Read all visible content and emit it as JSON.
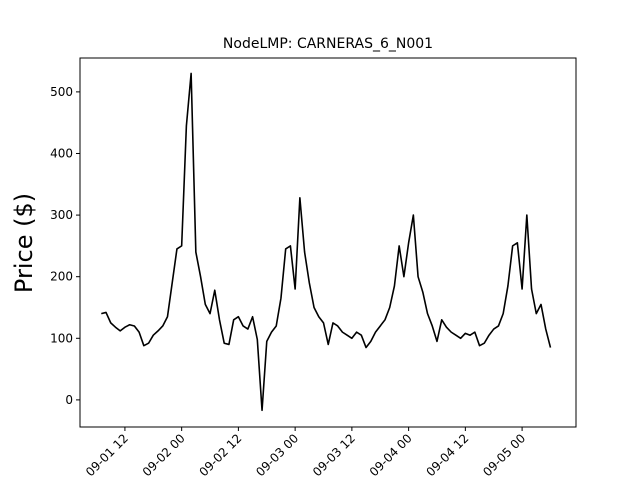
{
  "chart_data": {
    "type": "line",
    "title": "NodeLMP: CARNERAS_6_N001",
    "y_label": "Price ($)",
    "x": [
      "09-01 07",
      "09-01 08",
      "09-01 09",
      "09-01 10",
      "09-01 11",
      "09-01 12",
      "09-01 13",
      "09-01 14",
      "09-01 15",
      "09-01 16",
      "09-01 17",
      "09-01 18",
      "09-01 19",
      "09-01 20",
      "09-01 21",
      "09-01 22",
      "09-01 23",
      "09-02 00",
      "09-02 01",
      "09-02 02",
      "09-02 03",
      "09-02 04",
      "09-02 05",
      "09-02 06",
      "09-02 07",
      "09-02 08",
      "09-02 09",
      "09-02 10",
      "09-02 11",
      "09-02 12",
      "09-02 13",
      "09-02 14",
      "09-02 15",
      "09-02 16",
      "09-02 17",
      "09-02 18",
      "09-02 19",
      "09-02 20",
      "09-02 21",
      "09-02 22",
      "09-02 23",
      "09-03 00",
      "09-03 01",
      "09-03 02",
      "09-03 03",
      "09-03 04",
      "09-03 05",
      "09-03 06",
      "09-03 07",
      "09-03 08",
      "09-03 09",
      "09-03 10",
      "09-03 11",
      "09-03 12",
      "09-03 13",
      "09-03 14",
      "09-03 15",
      "09-03 16",
      "09-03 17",
      "09-03 18",
      "09-03 19",
      "09-03 20",
      "09-03 21",
      "09-03 22",
      "09-03 23",
      "09-04 00",
      "09-04 01",
      "09-04 02",
      "09-04 03",
      "09-04 04",
      "09-04 05",
      "09-04 06",
      "09-04 07",
      "09-04 08",
      "09-04 09",
      "09-04 10",
      "09-04 11",
      "09-04 12",
      "09-04 13",
      "09-04 14",
      "09-04 15",
      "09-04 16",
      "09-04 17",
      "09-04 18",
      "09-04 19",
      "09-04 20",
      "09-04 21",
      "09-04 22",
      "09-04 23",
      "09-05 00",
      "09-05 01",
      "09-05 02",
      "09-05 03",
      "09-05 04",
      "09-05 05",
      "09-05 06"
    ],
    "series": [
      {
        "name": "Price",
        "color": "#000000",
        "values": [
          140,
          142,
          125,
          118,
          112,
          118,
          122,
          120,
          110,
          88,
          92,
          105,
          112,
          120,
          135,
          190,
          245,
          250,
          445,
          530,
          240,
          200,
          155,
          140,
          178,
          130,
          92,
          90,
          130,
          135,
          120,
          115,
          135,
          98,
          -17,
          95,
          110,
          120,
          165,
          245,
          250,
          180,
          328,
          240,
          190,
          150,
          135,
          125,
          90,
          125,
          120,
          110,
          105,
          100,
          110,
          105,
          85,
          95,
          110,
          120,
          130,
          150,
          185,
          250,
          200,
          255,
          300,
          200,
          175,
          140,
          120,
          95,
          130,
          118,
          110,
          105,
          100,
          108,
          105,
          110,
          88,
          92,
          105,
          115,
          120,
          140,
          185,
          250,
          255,
          180,
          300,
          180,
          140,
          155,
          115,
          85
        ]
      }
    ],
    "xlim": [
      "09-01 02:30",
      "09-05 11:24"
    ],
    "xticks": [
      "09-01 12",
      "09-02 00",
      "09-02 12",
      "09-03 00",
      "09-03 12",
      "09-04 00",
      "09-04 12",
      "09-05 00"
    ],
    "ylim": [
      -44,
      555
    ],
    "yticks": [
      0,
      100,
      200,
      300,
      400,
      500
    ]
  }
}
